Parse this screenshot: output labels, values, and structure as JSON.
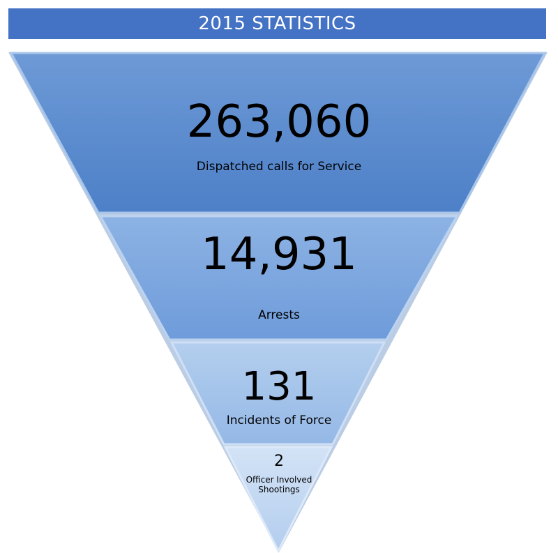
{
  "title": "2015 STATISTICS",
  "levels": [
    {
      "value": "263,060",
      "label": "Dispatched calls for Service"
    },
    {
      "value": "14,931",
      "label": "Arrests"
    },
    {
      "value": "131",
      "label": "Incidents of Force"
    },
    {
      "value": "2",
      "label": "Officer Involved Shootings"
    }
  ],
  "colors": {
    "title_bar": "#4472c4",
    "level_1": "#5b8fd0",
    "level_2": "#7aa8df",
    "level_3": "#a3c4ea",
    "level_4": "#c6dcf3"
  }
}
